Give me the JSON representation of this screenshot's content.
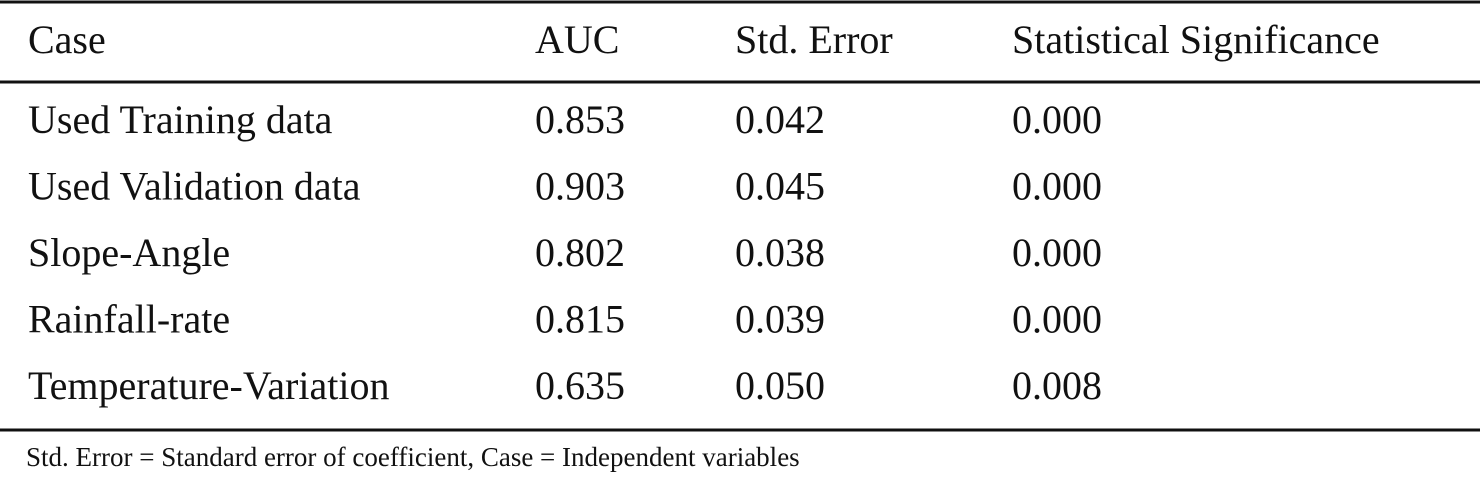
{
  "table": {
    "header": [
      "Case",
      "AUC",
      "Std. Error",
      "Statistical Significance"
    ],
    "rows": [
      [
        "Used Training data",
        "0.853",
        "0.042",
        "0.000"
      ],
      [
        "Used Validation data",
        "0.903",
        "0.045",
        "0.000"
      ],
      [
        "Slope-Angle",
        "0.802",
        "0.038",
        "0.000"
      ],
      [
        "Rainfall-rate",
        "0.815",
        "0.039",
        "0.000"
      ],
      [
        "Temperature-Variation",
        "0.635",
        "0.050",
        "0.008"
      ]
    ],
    "footnote": "Std. Error = Standard error of coefficient, Case = Independent variables"
  }
}
